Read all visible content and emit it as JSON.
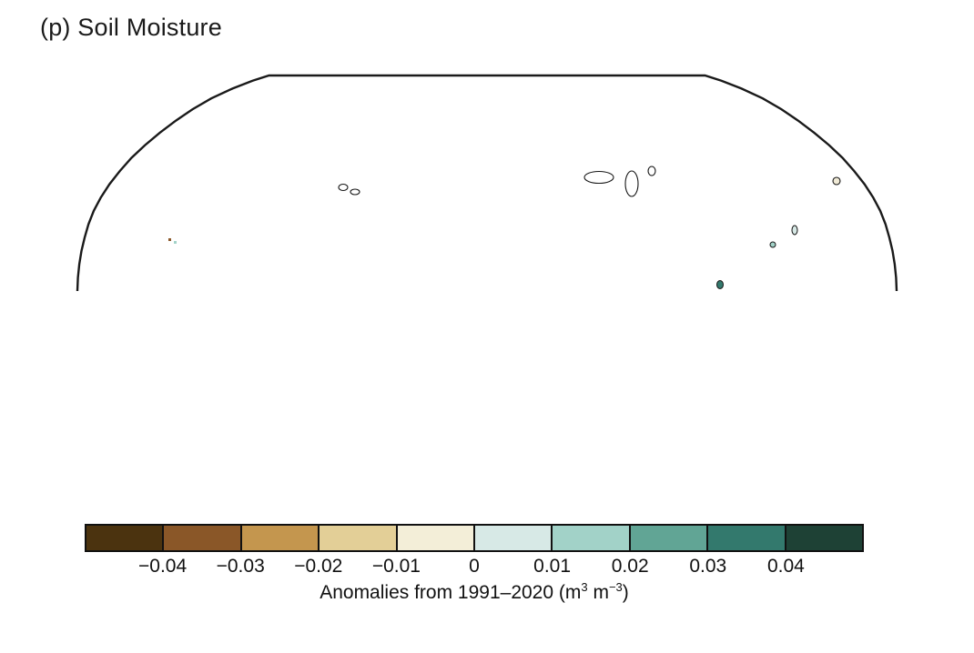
{
  "figure": {
    "title": "(p) Soil Moisture"
  },
  "map": {
    "projection_name": "robinson",
    "colors": {
      "ocean": "#ffffff",
      "land_base": "#f0ead6",
      "no_data": "#d2d2d2",
      "coastline": "#161616",
      "graticule": "#c6c6c6",
      "outline": "#1a1a1a"
    }
  },
  "colorbar": {
    "border_color": "#111111",
    "segment_colors": [
      "#4b330f",
      "#8a5728",
      "#c4964e",
      "#e3cf97",
      "#f3eed8",
      "#d7e9e6",
      "#a2d2c8",
      "#61a595",
      "#33796d",
      "#1e4135"
    ],
    "tick_labels": [
      "−0.04",
      "−0.03",
      "−0.02",
      "−0.01",
      "0",
      "0.01",
      "0.02",
      "0.03",
      "0.04"
    ],
    "caption": {
      "prefix": "Anomalies from 1991–2020 (m",
      "sup1": "3",
      "mid": " m",
      "sup2": "−3",
      "suffix": ")"
    }
  }
}
